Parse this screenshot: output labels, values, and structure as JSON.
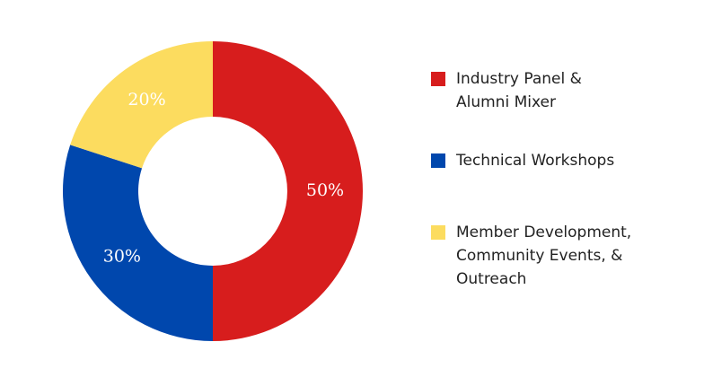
{
  "chart_data": {
    "type": "pie",
    "donut": true,
    "categories": [
      "Industry Panel &\nAlumni Mixer",
      "Technical Workshops",
      "Member Development,\nCommunity Events, &\nOutreach"
    ],
    "values": [
      50,
      30,
      20
    ],
    "value_labels": [
      "50%",
      "30%",
      "20%"
    ],
    "colors": [
      "#d71d1d",
      "#0047ad",
      "#fcdc5f"
    ],
    "title": "",
    "legend_position": "right"
  }
}
